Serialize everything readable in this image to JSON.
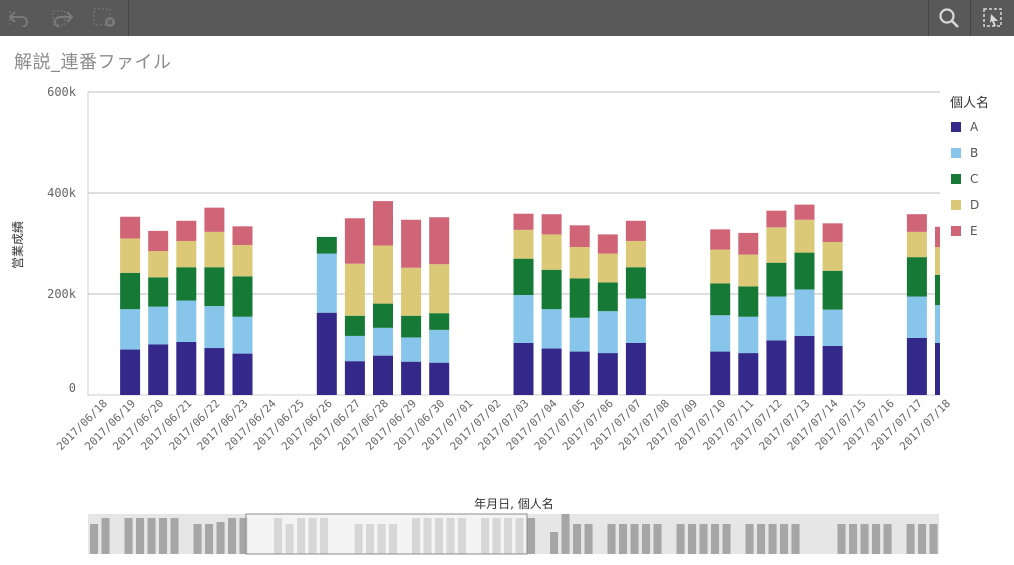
{
  "toolbar": {
    "left_icons": [
      "undo-icon",
      "redo-icon",
      "clear-selections-icon"
    ],
    "right_icons": [
      "search-icon",
      "smart-select-icon"
    ]
  },
  "title": "解説_連番ファイル",
  "colors": {
    "A": "#34288a",
    "B": "#87c6ea",
    "C": "#167a36",
    "D": "#dbc978",
    "E": "#d06578"
  },
  "chart_data": {
    "type": "bar",
    "stacked": true,
    "ylabel": "営業成績",
    "xlabel": "年月日, 個人名",
    "ylim": [
      0,
      600000
    ],
    "yticks": [
      {
        "value": 0,
        "label": "0"
      },
      {
        "value": 200000,
        "label": "200k"
      },
      {
        "value": 400000,
        "label": "400k"
      },
      {
        "value": 600000,
        "label": "600k"
      }
    ],
    "legend": {
      "title": "個人名",
      "position": "right"
    },
    "categories": [
      "2017/06/18",
      "2017/06/19",
      "2017/06/20",
      "2017/06/21",
      "2017/06/22",
      "2017/06/23",
      "2017/06/24",
      "2017/06/25",
      "2017/06/26",
      "2017/06/27",
      "2017/06/28",
      "2017/06/29",
      "2017/06/30",
      "2017/07/01",
      "2017/07/02",
      "2017/07/03",
      "2017/07/04",
      "2017/07/05",
      "2017/07/06",
      "2017/07/07",
      "2017/07/08",
      "2017/07/09",
      "2017/07/10",
      "2017/07/11",
      "2017/07/12",
      "2017/07/13",
      "2017/07/14",
      "2017/07/15",
      "2017/07/16",
      "2017/07/17",
      "2017/07/18"
    ],
    "series": [
      {
        "name": "A",
        "values": [
          null,
          90000,
          100000,
          105000,
          93000,
          82000,
          null,
          null,
          163000,
          67000,
          78000,
          66000,
          64000,
          null,
          null,
          103000,
          92000,
          86000,
          83000,
          103000,
          null,
          null,
          86000,
          83000,
          108000,
          117000,
          97000,
          null,
          null,
          113000,
          103000
        ]
      },
      {
        "name": "B",
        "values": [
          null,
          80000,
          75000,
          82000,
          83000,
          73000,
          null,
          null,
          117000,
          50000,
          55000,
          48000,
          65000,
          null,
          null,
          95000,
          78000,
          67000,
          83000,
          88000,
          null,
          null,
          72000,
          72000,
          87000,
          92000,
          72000,
          null,
          null,
          82000,
          75000
        ]
      },
      {
        "name": "C",
        "values": [
          null,
          72000,
          58000,
          66000,
          77000,
          80000,
          null,
          null,
          33000,
          40000,
          48000,
          43000,
          33000,
          null,
          null,
          72000,
          78000,
          78000,
          57000,
          62000,
          null,
          null,
          63000,
          60000,
          67000,
          73000,
          77000,
          null,
          null,
          78000,
          60000
        ]
      },
      {
        "name": "D",
        "values": [
          null,
          68000,
          52000,
          52000,
          70000,
          62000,
          null,
          null,
          null,
          103000,
          115000,
          95000,
          97000,
          null,
          null,
          57000,
          70000,
          62000,
          57000,
          52000,
          null,
          null,
          67000,
          63000,
          70000,
          65000,
          57000,
          null,
          null,
          50000,
          55000
        ]
      },
      {
        "name": "E",
        "values": [
          null,
          43000,
          40000,
          40000,
          48000,
          37000,
          null,
          null,
          null,
          90000,
          88000,
          95000,
          93000,
          null,
          null,
          32000,
          40000,
          43000,
          38000,
          40000,
          null,
          null,
          40000,
          43000,
          33000,
          30000,
          37000,
          null,
          null,
          35000,
          40000
        ]
      }
    ]
  },
  "minimap": {
    "bars": [
      30,
      36,
      0,
      36,
      36,
      36,
      36,
      36,
      0,
      30,
      30,
      32,
      36,
      36,
      0,
      0,
      36,
      30,
      36,
      36,
      36,
      0,
      0,
      30,
      30,
      30,
      30,
      0,
      36,
      36,
      36,
      36,
      36,
      0,
      36,
      36,
      36,
      36,
      36,
      0,
      22,
      40,
      30,
      30,
      0,
      30,
      30,
      30,
      30,
      30,
      0,
      30,
      30,
      30,
      30,
      30,
      0,
      30,
      30,
      30,
      30,
      30,
      0,
      0,
      0,
      30,
      30,
      30,
      30,
      30,
      0,
      30,
      30,
      30
    ]
  }
}
